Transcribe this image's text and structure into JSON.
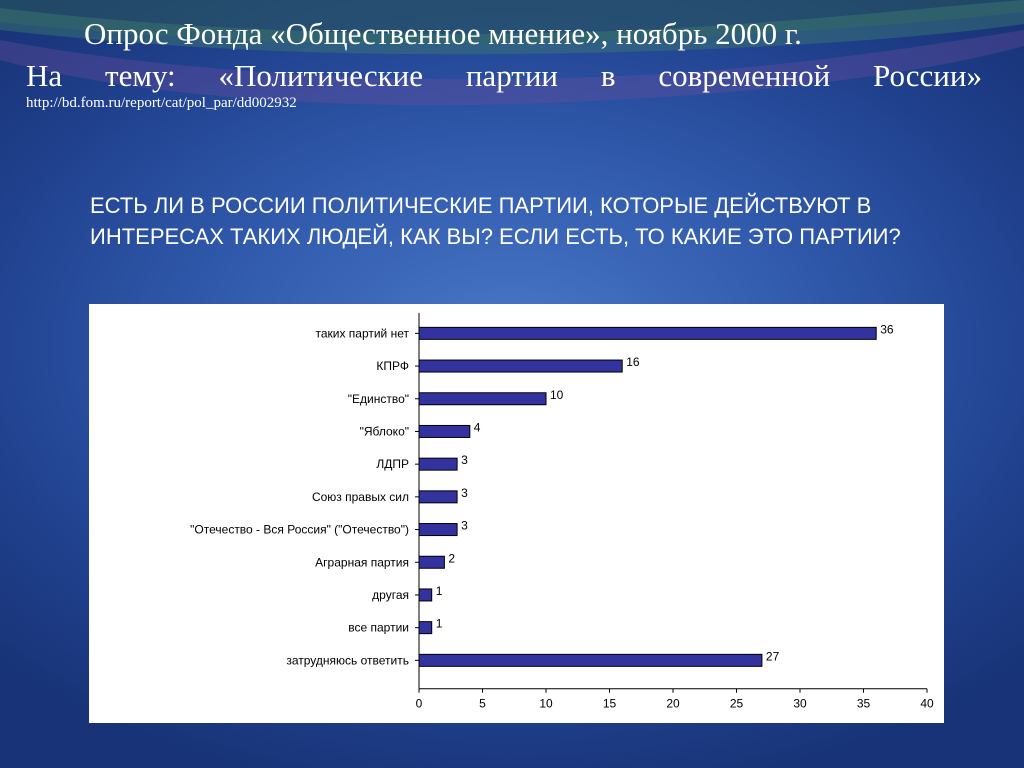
{
  "slide": {
    "title_line1": "Опрос Фонда «Общественное мнение», ноябрь 2000 г.",
    "title_line2_words": [
      "На",
      "тему:",
      "«Политические",
      "партии",
      "в",
      "современной",
      "России»"
    ],
    "source_url": "http://bd.fom.ru/report/cat/pol_par/dd002932",
    "question": "ЕСТЬ ЛИ В РОССИИ ПОЛИТИЧЕСКИЕ ПАРТИИ, КОТОРЫЕ ДЕЙСТВУЮТ В ИНТЕРЕСАХ ТАКИХ ЛЮДЕЙ, КАК ВЫ? ЕСЛИ ЕСТЬ, ТО КАКИЕ ЭТО ПАРТИИ?"
  },
  "chart_data": {
    "type": "bar",
    "orientation": "horizontal",
    "categories": [
      "таких партий нет",
      "КПРФ",
      "\"Единство\"",
      "\"Яблоко\"",
      "ЛДПР",
      "Союз правых сил",
      "\"Отечество - Вся Россия\" (\"Отечество\")",
      "Аграрная партия",
      "другая",
      "все партии",
      "затрудняюсь ответить"
    ],
    "values": [
      36,
      16,
      10,
      4,
      3,
      3,
      3,
      2,
      1,
      1,
      27
    ],
    "xlim": [
      0,
      40
    ],
    "xticks": [
      0,
      5,
      10,
      15,
      20,
      25,
      30,
      35,
      40
    ],
    "bar_color": "#3333a0",
    "data_labels": true,
    "grid": false
  }
}
